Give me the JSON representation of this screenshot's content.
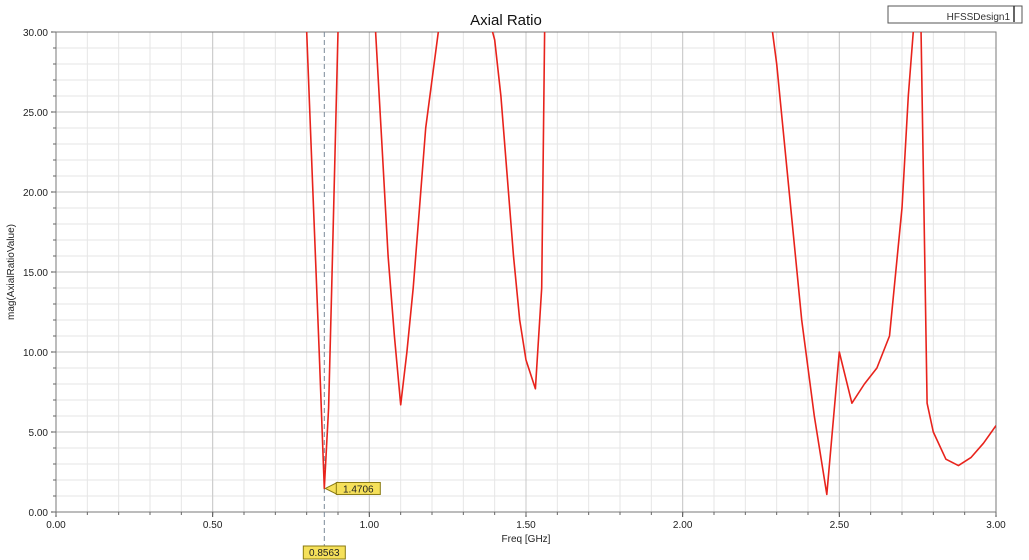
{
  "chart_data": {
    "type": "line",
    "title": "Axial Ratio",
    "xlabel": "Freq [GHz]",
    "ylabel": "mag(AxialRatioValue)",
    "xlim": [
      0,
      3
    ],
    "ylim": [
      0,
      30
    ],
    "x_ticks": [
      "0.00",
      "0.50",
      "1.00",
      "1.50",
      "2.00",
      "2.50",
      "3.00"
    ],
    "y_ticks": [
      "0.00",
      "5.00",
      "10.00",
      "15.00",
      "20.00",
      "25.00",
      "30.00"
    ],
    "grid": true,
    "legend_text": "HFSSDesign1",
    "series": [
      {
        "color": "#e8231c",
        "x": [
          0.78,
          0.8,
          0.82,
          0.84,
          0.8563,
          0.87,
          0.88,
          0.9,
          0.92,
          0.94,
          0.96,
          0.98,
          1.0,
          1.02,
          1.04,
          1.06,
          1.08,
          1.1,
          1.12,
          1.14,
          1.16,
          1.18,
          1.2,
          1.22,
          1.24,
          1.38,
          1.4,
          1.42,
          1.44,
          1.46,
          1.48,
          1.5,
          1.53,
          1.55,
          1.56,
          2.28,
          2.3,
          2.34,
          2.38,
          2.42,
          2.46,
          2.5,
          2.54,
          2.58,
          2.62,
          2.66,
          2.7,
          2.72,
          2.74,
          2.76,
          2.78,
          2.8,
          2.84,
          2.88,
          2.92,
          2.96,
          3.0
        ],
        "y": [
          31,
          30,
          20,
          10,
          1.4706,
          6.5,
          14,
          30,
          31,
          31,
          31,
          31,
          31,
          30,
          23,
          16,
          11,
          6.7,
          10,
          14,
          19,
          24,
          27,
          30,
          31,
          31,
          29.5,
          26,
          21,
          16,
          12,
          9.5,
          7.7,
          14,
          31,
          31,
          28,
          20,
          12,
          6,
          1.1,
          10,
          6.8,
          8,
          9,
          11,
          19,
          26,
          31,
          31,
          6.8,
          5,
          3.3,
          2.9,
          3.4,
          4.3,
          5.4
        ]
      }
    ],
    "marker": {
      "x_label": "0.8563",
      "y_label": "1.4706",
      "x": 0.8563,
      "y": 1.4706
    }
  }
}
